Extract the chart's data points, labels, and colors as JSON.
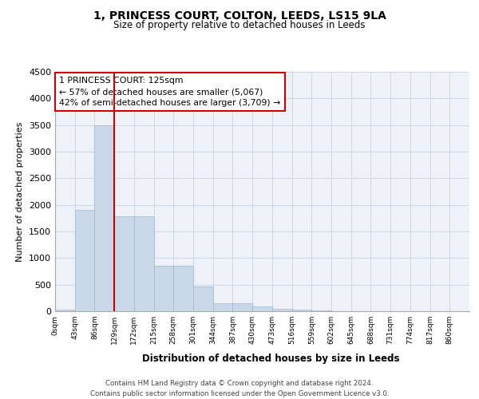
{
  "title": "1, PRINCESS COURT, COLTON, LEEDS, LS15 9LA",
  "subtitle": "Size of property relative to detached houses in Leeds",
  "xlabel": "Distribution of detached houses by size in Leeds",
  "ylabel": "Number of detached properties",
  "bin_labels": [
    "0sqm",
    "43sqm",
    "86sqm",
    "129sqm",
    "172sqm",
    "215sqm",
    "258sqm",
    "301sqm",
    "344sqm",
    "387sqm",
    "430sqm",
    "473sqm",
    "516sqm",
    "559sqm",
    "602sqm",
    "645sqm",
    "688sqm",
    "731sqm",
    "774sqm",
    "817sqm",
    "860sqm"
  ],
  "bar_values": [
    30,
    1900,
    3500,
    1780,
    1780,
    850,
    850,
    460,
    155,
    155,
    90,
    50,
    30,
    10,
    5,
    3,
    2,
    1,
    1,
    0,
    0
  ],
  "bar_color": "#c8d8e8",
  "bar_edge_color": "#a0b8cc",
  "grid_color": "#d0d8e8",
  "vline_x": 3,
  "vline_color": "#cc0000",
  "annotation_text": "1 PRINCESS COURT: 125sqm\n← 57% of detached houses are smaller (5,067)\n42% of semi-detached houses are larger (3,709) →",
  "annotation_box_color": "#ffffff",
  "annotation_box_edge": "#cc0000",
  "ylim": [
    0,
    4500
  ],
  "yticks": [
    0,
    500,
    1000,
    1500,
    2000,
    2500,
    3000,
    3500,
    4000,
    4500
  ],
  "footer1": "Contains HM Land Registry data © Crown copyright and database right 2024.",
  "footer2": "Contains public sector information licensed under the Open Government Licence v3.0.",
  "background_color": "#eef2f8"
}
